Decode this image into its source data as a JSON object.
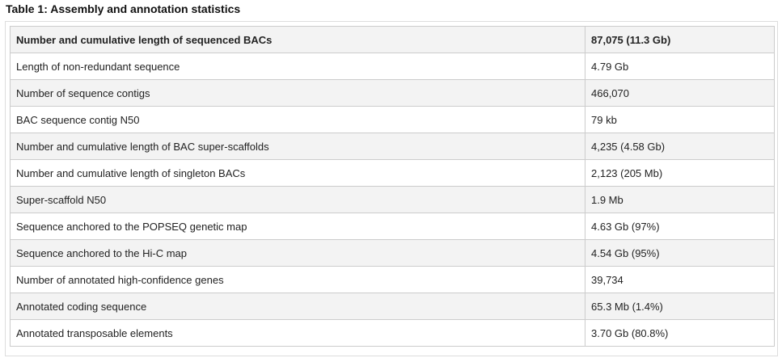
{
  "title": "Table 1: Assembly and annotation statistics",
  "rows": [
    {
      "label": "Number and cumulative length of sequenced BACs",
      "value": "87,075 (11.3 Gb)"
    },
    {
      "label": "Length of non-redundant sequence",
      "value": "4.79 Gb"
    },
    {
      "label": "Number of sequence contigs",
      "value": "466,070"
    },
    {
      "label": "BAC sequence contig N50",
      "value": "79 kb"
    },
    {
      "label": "Number and cumulative length of BAC super-scaffolds",
      "value": "4,235 (4.58 Gb)"
    },
    {
      "label": "Number and cumulative length of singleton BACs",
      "value": "2,123 (205 Mb)"
    },
    {
      "label": "Super-scaffold N50",
      "value": "1.9 Mb"
    },
    {
      "label": "Sequence anchored to the POPSEQ genetic map",
      "value": "4.63 Gb (97%)"
    },
    {
      "label": "Sequence anchored to the Hi-C map",
      "value": "4.54 Gb (95%)"
    },
    {
      "label": "Number of annotated high-confidence genes",
      "value": "39,734"
    },
    {
      "label": "Annotated coding sequence",
      "value": "65.3 Mb (1.4%)"
    },
    {
      "label": "Annotated transposable elements",
      "value": "3.70 Gb (80.8%)"
    }
  ]
}
